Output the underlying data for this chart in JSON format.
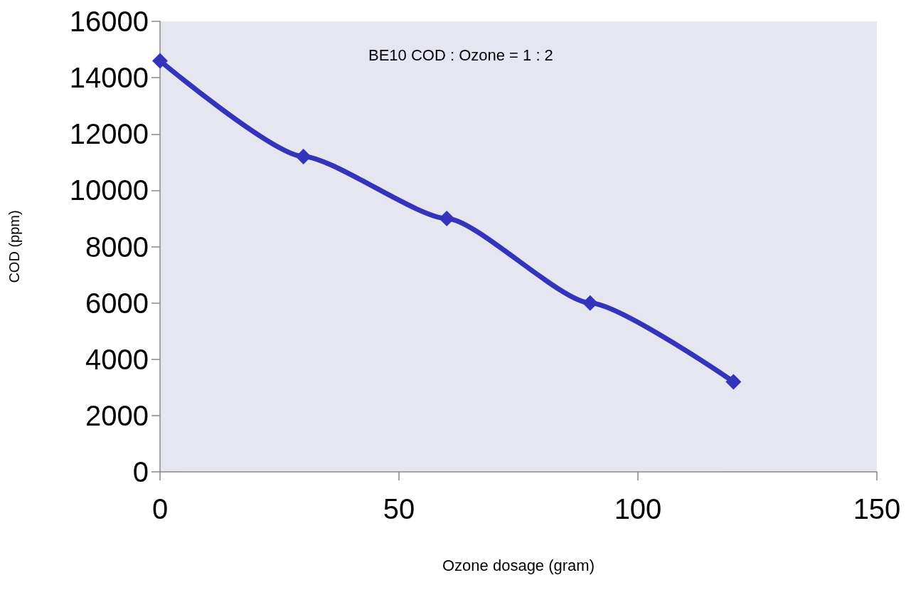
{
  "chart_data": {
    "type": "line",
    "xlabel": "Ozone dosage (gram)",
    "ylabel": "COD (ppm)",
    "annotations": [
      "BE10 COD : Ozone = 1 : 2"
    ],
    "x": [
      0,
      30,
      60,
      90,
      120
    ],
    "series": [
      {
        "color": "#3333bb",
        "values": [
          14600,
          11200,
          9000,
          6000,
          3200
        ]
      }
    ],
    "xlim": [
      0,
      150
    ],
    "xticks": [
      0,
      50,
      100,
      150
    ],
    "ylim": [
      0,
      16000
    ],
    "yticks": [
      0,
      2000,
      4000,
      6000,
      8000,
      10000,
      12000,
      14000,
      16000
    ],
    "grid": false,
    "marker": "diamond",
    "line_style": "solid"
  }
}
